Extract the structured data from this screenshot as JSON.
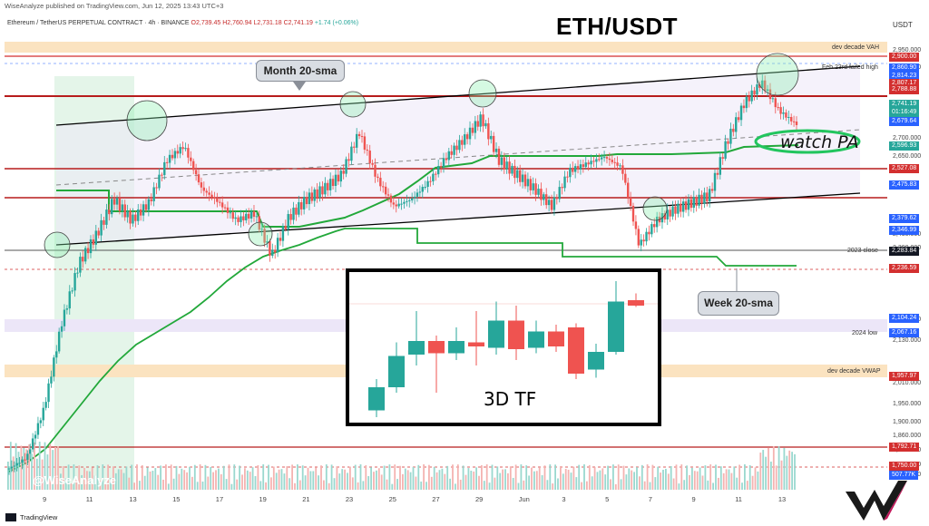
{
  "header": {
    "publish_line": "WiseAnalyze published on TradingView.com, Jun 12, 2025 13:43 UTC+3",
    "symbol": "Ethereum / TetherUS PERPETUAL CONTRACT · 4h · BINANCE",
    "ohlc_open": "O2,739.45",
    "ohlc_high": "H2,760.94",
    "ohlc_low": "L2,731.18",
    "ohlc_close": "C2,741.19",
    "ohlc_change": "+1.74 (+0.06%)",
    "currency": "USDT"
  },
  "chart_data": [
    {
      "type": "candlestick",
      "title": "ETH/USDT",
      "timeframe": "4h",
      "x_ticks": [
        "9",
        "11",
        "13",
        "15",
        "17",
        "19",
        "21",
        "23",
        "25",
        "27",
        "29",
        "Jun",
        "3",
        "5",
        "7",
        "9",
        "11",
        "13"
      ],
      "y_ticks": [
        2950,
        2900,
        2700,
        2650,
        2430,
        2390,
        2190,
        2130,
        2010,
        1950,
        1900,
        1860,
        1820,
        1780,
        1750
      ],
      "ylim": [
        1710,
        2990
      ],
      "series": [
        {
          "name": "ETH/USDT",
          "close_path_approx": [
            [
              0,
              1770
            ],
            [
              1,
              1800
            ],
            [
              2,
              1940
            ],
            [
              3,
              2180
            ],
            [
              4,
              2350
            ],
            [
              5,
              2430
            ],
            [
              6,
              2530
            ],
            [
              7,
              2470
            ],
            [
              8,
              2520
            ],
            [
              9,
              2640
            ],
            [
              10,
              2680
            ],
            [
              11,
              2560
            ],
            [
              12,
              2520
            ],
            [
              13,
              2470
            ],
            [
              14,
              2490
            ],
            [
              15,
              2370
            ],
            [
              16,
              2480
            ],
            [
              17,
              2530
            ],
            [
              18,
              2560
            ],
            [
              19,
              2600
            ],
            [
              20,
              2720
            ],
            [
              21,
              2590
            ],
            [
              22,
              2510
            ],
            [
              23,
              2530
            ],
            [
              24,
              2580
            ],
            [
              25,
              2650
            ],
            [
              26,
              2700
            ],
            [
              27,
              2760
            ],
            [
              28,
              2640
            ],
            [
              29,
              2600
            ],
            [
              30,
              2560
            ],
            [
              31,
              2510
            ],
            [
              32,
              2610
            ],
            [
              33,
              2630
            ],
            [
              34,
              2650
            ],
            [
              35,
              2620
            ],
            [
              36,
              2400
            ],
            [
              37,
              2470
            ],
            [
              38,
              2500
            ],
            [
              39,
              2520
            ],
            [
              40,
              2540
            ],
            [
              41,
              2690
            ],
            [
              42,
              2800
            ],
            [
              43,
              2860
            ],
            [
              44,
              2780
            ],
            [
              45,
              2741
            ]
          ]
        }
      ],
      "indicators": [
        {
          "name": "Month 20-sma"
        },
        {
          "name": "Week 20-sma"
        }
      ],
      "price_tags": [
        {
          "label": "2,900.00",
          "color": "#d32f2f"
        },
        {
          "label": "2,860.90",
          "color": "#2962ff"
        },
        {
          "label": "2,814.23",
          "color": "#2962ff"
        },
        {
          "label": "2,807.17",
          "color": "#d32f2f"
        },
        {
          "label": "2,788.88",
          "color": "#d32f2f"
        },
        {
          "label": "2,741.19",
          "color": "#26a69a"
        },
        {
          "label": "01:16:49",
          "color": "#26a69a"
        },
        {
          "label": "2,679.64",
          "color": "#2962ff"
        },
        {
          "label": "2,596.93",
          "color": "#26a69a"
        },
        {
          "label": "2,527.08",
          "color": "#d32f2f"
        },
        {
          "label": "2,475.83",
          "color": "#2962ff"
        },
        {
          "label": "2,379.62",
          "color": "#2962ff"
        },
        {
          "label": "2,346.99",
          "color": "#2962ff"
        },
        {
          "label": "2,283.84",
          "color": "#131722"
        },
        {
          "label": "2,236.59",
          "color": "#d32f2f"
        },
        {
          "label": "2,104.24",
          "color": "#2962ff"
        },
        {
          "label": "2,067.16",
          "color": "#2962ff"
        },
        {
          "label": "1,957.97",
          "color": "#d32f2f"
        },
        {
          "label": "1,792.71",
          "color": "#d32f2f"
        },
        {
          "label": "1,750.00",
          "color": "#d32f2f"
        },
        {
          "label": "507.77K",
          "color": "#2962ff"
        }
      ],
      "level_labels": {
        "vah": "dev decade VAH",
        "feb23": "Feb 23rd failed high",
        "close2023": "2023 close",
        "low2024": "2024 low",
        "vwap": "dev decade VWAP"
      },
      "annotations": {
        "month_sma": "Month 20-sma",
        "week_sma": "Week 20-sma",
        "watch": "watch PA"
      },
      "inset": {
        "type": "candlestick",
        "label": "3D TF",
        "candles": [
          {
            "o": 0.05,
            "c": 0.22,
            "h": 0.28,
            "l": 0.0,
            "up": true
          },
          {
            "o": 0.22,
            "c": 0.45,
            "h": 0.55,
            "l": 0.18,
            "up": true
          },
          {
            "o": 0.46,
            "c": 0.56,
            "h": 0.78,
            "l": 0.38,
            "up": true
          },
          {
            "o": 0.56,
            "c": 0.47,
            "h": 0.6,
            "l": 0.18,
            "up": false
          },
          {
            "o": 0.47,
            "c": 0.56,
            "h": 0.66,
            "l": 0.42,
            "up": true
          },
          {
            "o": 0.55,
            "c": 0.52,
            "h": 0.78,
            "l": 0.38,
            "up": false
          },
          {
            "o": 0.51,
            "c": 0.71,
            "h": 0.85,
            "l": 0.46,
            "up": true
          },
          {
            "o": 0.71,
            "c": 0.5,
            "h": 0.82,
            "l": 0.42,
            "up": false
          },
          {
            "o": 0.51,
            "c": 0.63,
            "h": 0.71,
            "l": 0.47,
            "up": true
          },
          {
            "o": 0.63,
            "c": 0.52,
            "h": 0.68,
            "l": 0.48,
            "up": false
          },
          {
            "o": 0.66,
            "c": 0.32,
            "h": 0.69,
            "l": 0.28,
            "up": false
          },
          {
            "o": 0.35,
            "c": 0.48,
            "h": 0.54,
            "l": 0.29,
            "up": true
          },
          {
            "o": 0.48,
            "c": 0.85,
            "h": 1.0,
            "l": 0.46,
            "up": true
          },
          {
            "o": 0.86,
            "c": 0.82,
            "h": 0.91,
            "l": 0.81,
            "up": false
          }
        ]
      }
    }
  ],
  "footer": {
    "watermark": "@WiseAnalyze",
    "brand": "TradingView"
  },
  "colors": {
    "up": "#26a69a",
    "down": "#ef5350",
    "channel": "#000000",
    "sma_month": "#22a83a",
    "resistance": "#b71c1c"
  }
}
